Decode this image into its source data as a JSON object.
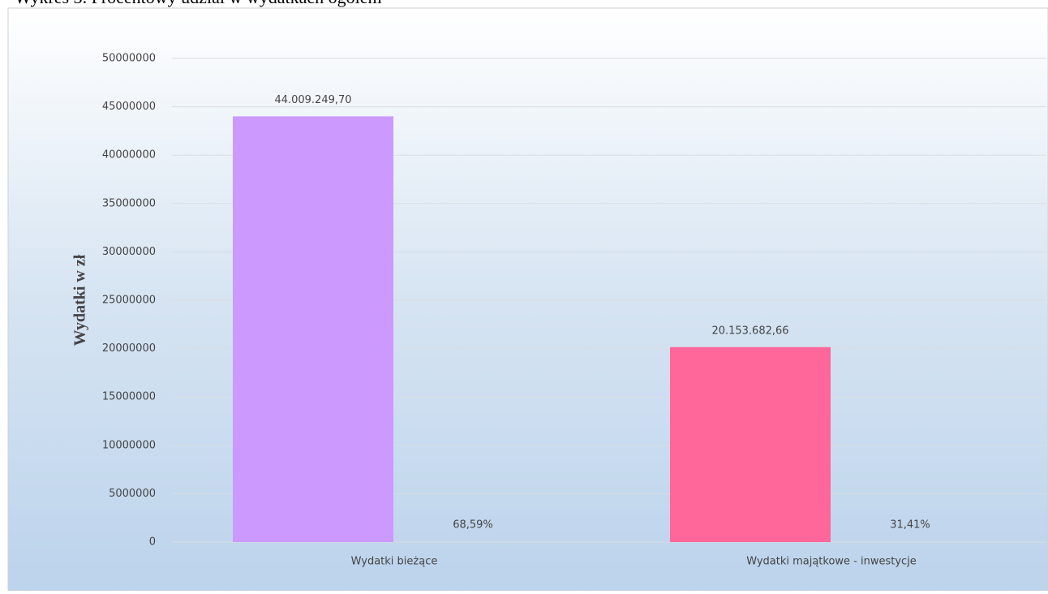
{
  "chart_data": {
    "type": "bar",
    "title": "Wykres 3. Procentowy udział w wydatkach ogółem",
    "ylabel": "Wydatki  w zł",
    "categories": [
      "Wydatki bieżące",
      "Wydatki  majątkowe - inwestycje"
    ],
    "values": [
      44009249.7,
      20153682.66
    ],
    "value_labels": [
      "44.009.249,70",
      "20.153.682,66"
    ],
    "colors": [
      "#cc99ff",
      "#ff6699"
    ],
    "annotations": [
      {
        "value": 68.59,
        "label": "68,59%"
      },
      {
        "value": 31.41,
        "label": "31,41%"
      }
    ],
    "ylim": [
      0,
      50000000
    ],
    "yticks": [
      0,
      5000000,
      10000000,
      15000000,
      20000000,
      25000000,
      30000000,
      35000000,
      40000000,
      45000000,
      50000000
    ],
    "grid": true
  }
}
